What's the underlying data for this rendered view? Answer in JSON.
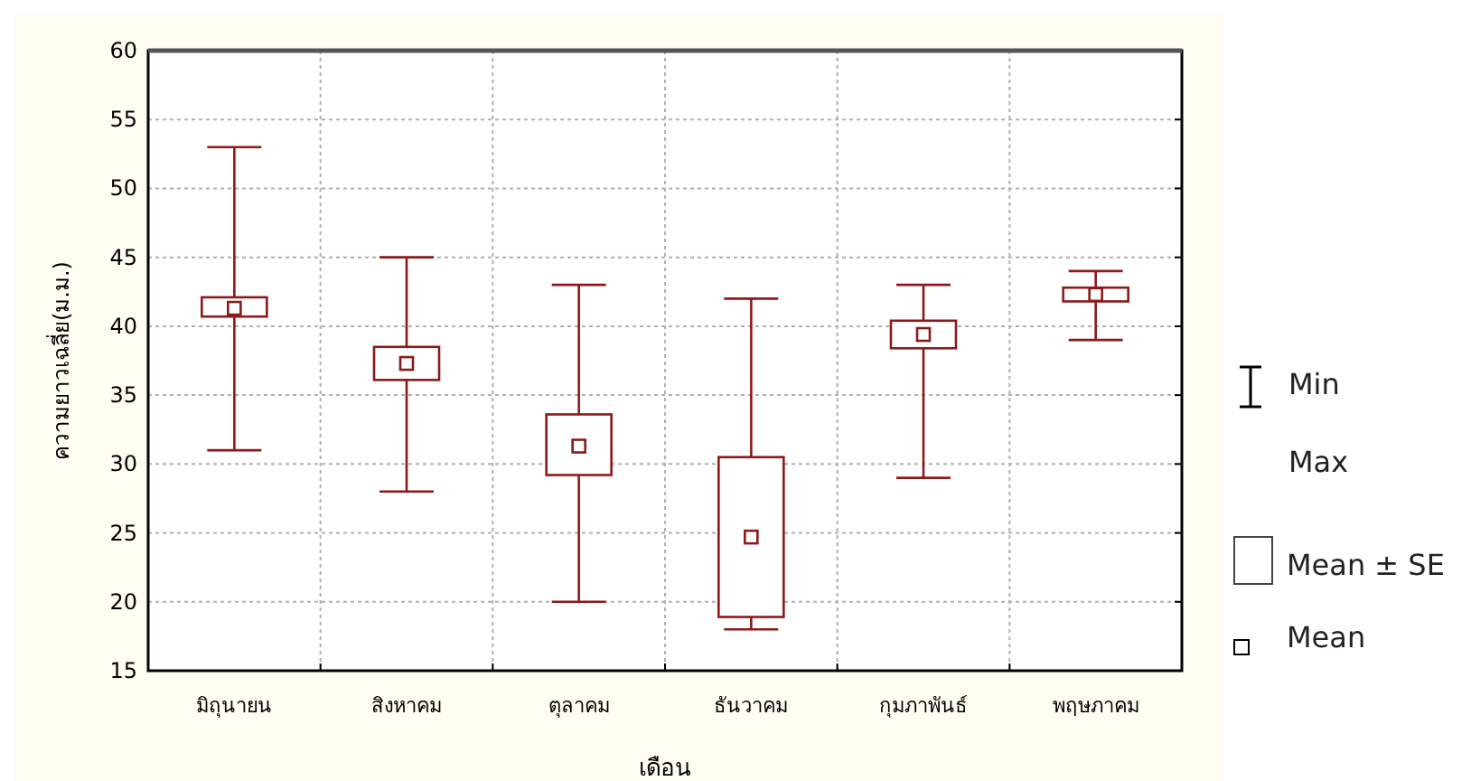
{
  "chart_data": {
    "type": "box",
    "xlabel": "เดือน",
    "ylabel": "ความยาวเฉลี่ย(ม.ม.)",
    "categories": [
      "มิถุนายน",
      "สิงหาคม",
      "ตุลาคม",
      "ธันวาคม",
      "กุมภาพันธ์",
      "พฤษภาคม"
    ],
    "series": [
      {
        "color": "#8b1a1a",
        "boxes": [
          {
            "low": 31,
            "q1": 40.7,
            "q3": 42.1,
            "high": 53,
            "mean": 41.3
          },
          {
            "low": 28,
            "q1": 36.1,
            "q3": 38.5,
            "high": 45,
            "mean": 37.3
          },
          {
            "low": 20,
            "q1": 29.2,
            "q3": 33.6,
            "high": 43,
            "mean": 31.3
          },
          {
            "low": 18,
            "q1": 18.9,
            "q3": 30.5,
            "high": 42,
            "mean": 24.7
          },
          {
            "low": 29,
            "q1": 38.4,
            "q3": 40.4,
            "high": 43,
            "mean": 39.4
          },
          {
            "low": 39,
            "q1": 41.8,
            "q3": 42.8,
            "high": 44,
            "mean": 42.3
          }
        ]
      }
    ],
    "ylim": [
      15,
      60
    ],
    "yticks": [
      15,
      20,
      25,
      30,
      35,
      40,
      45,
      50,
      55,
      60
    ],
    "grid": true,
    "annotations": [
      "Min Max",
      "Mean ± SE",
      "Mean"
    ]
  }
}
